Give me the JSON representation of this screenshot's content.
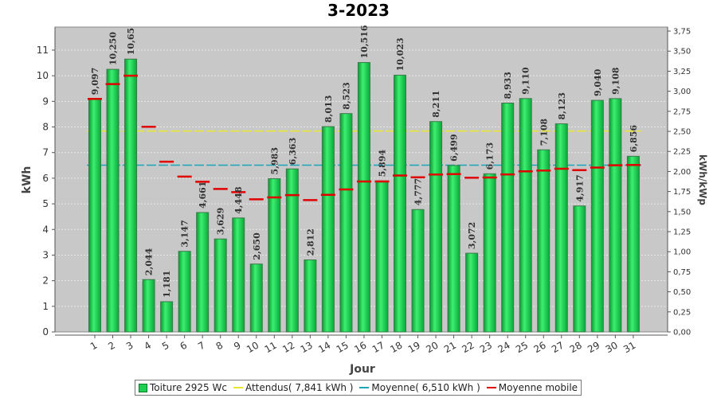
{
  "chart_data": {
    "type": "bar",
    "title": "3-2023",
    "xlabel": "Jour",
    "ylabel": "kWh",
    "y2label": "kWh/kWp",
    "ylim": [
      0,
      11.9
    ],
    "y2lim": [
      0,
      3.8
    ],
    "yticks": [
      0,
      1,
      2,
      3,
      4,
      5,
      6,
      7,
      8,
      9,
      10,
      11
    ],
    "y2ticks": [
      "0,00",
      "0,25",
      "0,50",
      "0,75",
      "1,00",
      "1,25",
      "1,50",
      "1,75",
      "2,00",
      "2,25",
      "2,50",
      "2,75",
      "3,00",
      "3,25",
      "3,50",
      "3,75"
    ],
    "grid": true,
    "legend_position": "bottom",
    "categories": [
      "1",
      "2",
      "3",
      "4",
      "5",
      "6",
      "7",
      "8",
      "9",
      "10",
      "11",
      "12",
      "13",
      "14",
      "15",
      "16",
      "17",
      "18",
      "19",
      "20",
      "21",
      "22",
      "23",
      "24",
      "25",
      "26",
      "27",
      "28",
      "29",
      "30",
      "31"
    ],
    "series": [
      {
        "name": "Toiture 2925 Wc",
        "color": "#1fcf4f",
        "values": [
          9.097,
          10.25,
          10.65,
          2.044,
          1.181,
          3.147,
          4.661,
          3.629,
          4.448,
          2.65,
          5.983,
          6.363,
          2.812,
          8.013,
          8.523,
          10.516,
          5.894,
          10.023,
          4.777,
          8.211,
          6.499,
          3.072,
          6.173,
          8.933,
          9.11,
          7.108,
          8.123,
          4.917,
          9.04,
          9.108,
          6.856
        ],
        "labels": [
          "9,097",
          "10,250",
          "10,65",
          "2,044",
          "1,181",
          "3,147",
          "4,661",
          "3,629",
          "4,448",
          "2,650",
          "5,983",
          "6,363",
          "2,812",
          "8,013",
          "8,523",
          "10,516",
          "5,894",
          "10,023",
          "4,777",
          "8,211",
          "6,499",
          "3,072",
          "6,173",
          "8,933",
          "9,110",
          "7,108",
          "8,123",
          "4,917",
          "9,040",
          "9,108",
          "6,856"
        ]
      },
      {
        "name": "Attendus( 7,841 kWh )",
        "color": "#e8e830",
        "value": 7.841
      },
      {
        "name": "Moyenne( 6,510 kWh )",
        "color": "#1aa6b8",
        "value": 6.51
      },
      {
        "name": "Moyenne mobile",
        "color": "#e00000",
        "values": [
          9.097,
          9.674,
          9.999,
          8.01,
          6.644,
          6.061,
          5.861,
          5.582,
          5.456,
          5.176,
          5.249,
          5.342,
          5.147,
          5.352,
          5.563,
          5.873,
          5.874,
          6.104,
          6.034,
          6.143,
          6.16,
          6.02,
          6.027,
          6.148,
          6.27,
          6.3,
          6.368,
          6.317,
          6.415,
          6.507,
          6.518
        ]
      }
    ]
  }
}
